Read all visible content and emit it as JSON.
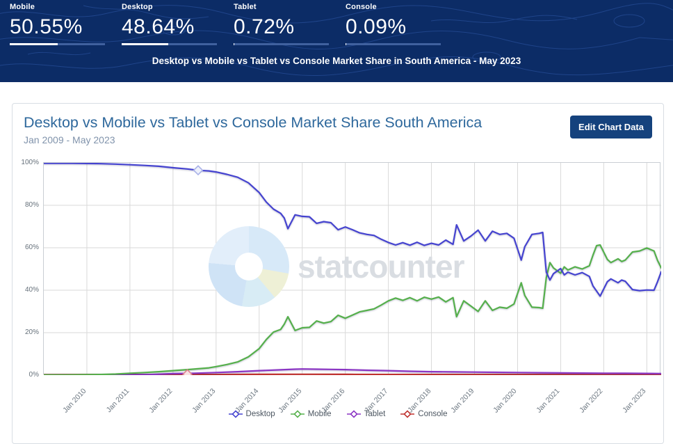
{
  "header": {
    "stats": [
      {
        "label": "Mobile",
        "value": "50.55%",
        "pct": 50.55
      },
      {
        "label": "Desktop",
        "value": "48.64%",
        "pct": 48.64
      },
      {
        "label": "Tablet",
        "value": "0.72%",
        "pct": 0.72
      },
      {
        "label": "Console",
        "value": "0.09%",
        "pct": 0.09
      }
    ],
    "subtitle": "Desktop vs Mobile vs Tablet vs Console Market Share in South America - May 2023"
  },
  "card": {
    "title": "Desktop vs Mobile vs Tablet vs Console Market Share South America",
    "period": "Jan 2009 - May 2023",
    "edit_button": "Edit Chart Data",
    "watermark": "statcounter"
  },
  "colors": {
    "header_background": "#0c2c66",
    "button_background": "#15427d",
    "title_text": "#2e689c"
  },
  "chart_data": {
    "type": "line",
    "title": "Desktop vs Mobile vs Tablet vs Console Market Share South America",
    "x_unit": "months since Jan 2009",
    "x_range": [
      0,
      172
    ],
    "ylim": [
      0,
      100
    ],
    "grid": true,
    "legend_position": "bottom",
    "y_ticks": [
      {
        "label": "100%",
        "value": 100
      },
      {
        "label": "80%",
        "value": 80
      },
      {
        "label": "60%",
        "value": 60
      },
      {
        "label": "40%",
        "value": 40
      },
      {
        "label": "20%",
        "value": 20
      },
      {
        "label": "0%",
        "value": 0
      }
    ],
    "x_ticks": [
      {
        "label": "Jan 2010",
        "month": 12
      },
      {
        "label": "Jan 2011",
        "month": 24
      },
      {
        "label": "Jan 2012",
        "month": 36
      },
      {
        "label": "Jan 2013",
        "month": 48
      },
      {
        "label": "Jan 2014",
        "month": 60
      },
      {
        "label": "Jan 2015",
        "month": 72
      },
      {
        "label": "Jan 2016",
        "month": 84
      },
      {
        "label": "Jan 2017",
        "month": 96
      },
      {
        "label": "Jan 2018",
        "month": 108
      },
      {
        "label": "Jan 2019",
        "month": 120
      },
      {
        "label": "Jan 2020",
        "month": 132
      },
      {
        "label": "Jan 2021",
        "month": 144
      },
      {
        "label": "Jan 2022",
        "month": 156
      },
      {
        "label": "Jan 2023",
        "month": 168
      }
    ],
    "series": [
      {
        "name": "Console",
        "color": "#bf312e",
        "points": [
          [
            0,
            0.2
          ],
          [
            12,
            0.25
          ],
          [
            24,
            0.3
          ],
          [
            36,
            0.3
          ],
          [
            48,
            0.3
          ],
          [
            60,
            0.35
          ],
          [
            72,
            0.4
          ],
          [
            84,
            0.35
          ],
          [
            96,
            0.3
          ],
          [
            108,
            0.3
          ],
          [
            120,
            0.3
          ],
          [
            132,
            0.3
          ],
          [
            144,
            0.25
          ],
          [
            156,
            0.2
          ],
          [
            168,
            0.15
          ],
          [
            172,
            0.09
          ]
        ]
      },
      {
        "name": "Tablet",
        "color": "#8b35c4",
        "points": [
          [
            0,
            0.0
          ],
          [
            12,
            0.05
          ],
          [
            24,
            0.15
          ],
          [
            30,
            0.3
          ],
          [
            36,
            0.7
          ],
          [
            42,
            0.9
          ],
          [
            48,
            1.2
          ],
          [
            54,
            1.6
          ],
          [
            60,
            2.1
          ],
          [
            66,
            2.5
          ],
          [
            70,
            2.8
          ],
          [
            72,
            2.9
          ],
          [
            76,
            2.8
          ],
          [
            80,
            2.7
          ],
          [
            84,
            2.6
          ],
          [
            90,
            2.3
          ],
          [
            96,
            2.1
          ],
          [
            102,
            1.8
          ],
          [
            108,
            1.6
          ],
          [
            114,
            1.5
          ],
          [
            120,
            1.4
          ],
          [
            126,
            1.3
          ],
          [
            132,
            1.2
          ],
          [
            138,
            1.1
          ],
          [
            144,
            1.0
          ],
          [
            150,
            0.95
          ],
          [
            156,
            0.9
          ],
          [
            162,
            0.85
          ],
          [
            168,
            0.8
          ],
          [
            172,
            0.72
          ]
        ]
      },
      {
        "name": "Mobile",
        "color": "#55b04b",
        "points": [
          [
            0,
            0.1
          ],
          [
            6,
            0.1
          ],
          [
            12,
            0.2
          ],
          [
            16,
            0.3
          ],
          [
            20,
            0.5
          ],
          [
            24,
            0.9
          ],
          [
            28,
            1.2
          ],
          [
            32,
            1.6
          ],
          [
            36,
            2.1
          ],
          [
            40,
            2.6
          ],
          [
            43,
            3.0
          ],
          [
            46,
            3.4
          ],
          [
            48,
            4.0
          ],
          [
            51,
            5.0
          ],
          [
            54,
            6.2
          ],
          [
            57,
            8.6
          ],
          [
            60,
            12.5
          ],
          [
            62,
            16.8
          ],
          [
            64,
            20.3
          ],
          [
            66,
            21.5
          ],
          [
            67,
            24.0
          ],
          [
            68,
            27.5
          ],
          [
            70,
            21.0
          ],
          [
            72,
            22.3
          ],
          [
            74,
            22.5
          ],
          [
            76,
            25.5
          ],
          [
            78,
            24.5
          ],
          [
            80,
            25.2
          ],
          [
            82,
            28.2
          ],
          [
            84,
            26.8
          ],
          [
            86,
            28.3
          ],
          [
            88,
            29.8
          ],
          [
            90,
            30.5
          ],
          [
            92,
            31.2
          ],
          [
            94,
            33.0
          ],
          [
            96,
            35.0
          ],
          [
            98,
            36.3
          ],
          [
            100,
            35.2
          ],
          [
            102,
            36.5
          ],
          [
            104,
            35.0
          ],
          [
            106,
            36.7
          ],
          [
            108,
            35.8
          ],
          [
            110,
            36.8
          ],
          [
            112,
            34.5
          ],
          [
            114,
            36.5
          ],
          [
            115,
            27.5
          ],
          [
            117,
            35.0
          ],
          [
            119,
            32.5
          ],
          [
            121,
            30.0
          ],
          [
            123,
            35.0
          ],
          [
            125,
            30.5
          ],
          [
            127,
            32.0
          ],
          [
            129,
            31.5
          ],
          [
            131,
            33.5
          ],
          [
            133,
            43.5
          ],
          [
            134,
            37.5
          ],
          [
            136,
            32.0
          ],
          [
            138,
            31.8
          ],
          [
            139,
            31.5
          ],
          [
            140,
            46.0
          ],
          [
            141,
            53.0
          ],
          [
            142,
            50.5
          ],
          [
            144,
            48.0
          ],
          [
            145,
            51.0
          ],
          [
            146,
            49.5
          ],
          [
            148,
            51.0
          ],
          [
            150,
            50.0
          ],
          [
            152,
            51.5
          ],
          [
            153,
            56.5
          ],
          [
            154,
            61.0
          ],
          [
            155,
            61.3
          ],
          [
            157,
            54.5
          ],
          [
            158,
            53.0
          ],
          [
            160,
            54.8
          ],
          [
            161,
            53.5
          ],
          [
            162,
            54.2
          ],
          [
            164,
            58.0
          ],
          [
            166,
            58.5
          ],
          [
            168,
            59.9
          ],
          [
            170,
            58.5
          ],
          [
            171,
            54.0
          ],
          [
            172,
            50.55
          ]
        ]
      },
      {
        "name": "Desktop",
        "color": "#4543d0",
        "points": [
          [
            0,
            99.8
          ],
          [
            4,
            99.8
          ],
          [
            8,
            99.8
          ],
          [
            12,
            99.7
          ],
          [
            16,
            99.6
          ],
          [
            20,
            99.4
          ],
          [
            24,
            99.1
          ],
          [
            28,
            98.8
          ],
          [
            32,
            98.4
          ],
          [
            36,
            97.7
          ],
          [
            40,
            97.1
          ],
          [
            43,
            96.5
          ],
          [
            46,
            96.2
          ],
          [
            48,
            95.7
          ],
          [
            51,
            94.6
          ],
          [
            54,
            93.2
          ],
          [
            57,
            90.6
          ],
          [
            60,
            86.0
          ],
          [
            62,
            81.5
          ],
          [
            64,
            78.2
          ],
          [
            66,
            76.2
          ],
          [
            67,
            74.0
          ],
          [
            68,
            69.0
          ],
          [
            70,
            75.5
          ],
          [
            72,
            74.8
          ],
          [
            74,
            74.6
          ],
          [
            76,
            71.5
          ],
          [
            78,
            72.3
          ],
          [
            80,
            71.8
          ],
          [
            82,
            68.5
          ],
          [
            84,
            69.8
          ],
          [
            86,
            68.5
          ],
          [
            88,
            67.0
          ],
          [
            90,
            66.3
          ],
          [
            92,
            65.8
          ],
          [
            94,
            64.0
          ],
          [
            96,
            62.5
          ],
          [
            98,
            61.3
          ],
          [
            100,
            62.4
          ],
          [
            102,
            61.2
          ],
          [
            104,
            62.6
          ],
          [
            106,
            61.1
          ],
          [
            108,
            62.1
          ],
          [
            110,
            61.3
          ],
          [
            112,
            63.6
          ],
          [
            114,
            61.6
          ],
          [
            115,
            70.8
          ],
          [
            117,
            63.2
          ],
          [
            119,
            65.5
          ],
          [
            121,
            68.3
          ],
          [
            123,
            63.2
          ],
          [
            125,
            67.8
          ],
          [
            127,
            66.3
          ],
          [
            129,
            66.8
          ],
          [
            131,
            64.5
          ],
          [
            133,
            54.2
          ],
          [
            134,
            60.5
          ],
          [
            136,
            66.3
          ],
          [
            138,
            66.8
          ],
          [
            139,
            67.2
          ],
          [
            140,
            48.5
          ],
          [
            141,
            44.8
          ],
          [
            142,
            47.8
          ],
          [
            144,
            50.2
          ],
          [
            145,
            47.2
          ],
          [
            146,
            48.5
          ],
          [
            148,
            47.2
          ],
          [
            150,
            48.3
          ],
          [
            152,
            46.5
          ],
          [
            153,
            42.0
          ],
          [
            155,
            37.2
          ],
          [
            157,
            44.0
          ],
          [
            158,
            45.3
          ],
          [
            160,
            43.5
          ],
          [
            161,
            44.8
          ],
          [
            162,
            44.2
          ],
          [
            164,
            40.3
          ],
          [
            166,
            39.8
          ],
          [
            168,
            40.1
          ],
          [
            170,
            40.0
          ],
          [
            171,
            44.0
          ],
          [
            172,
            48.64
          ]
        ]
      }
    ],
    "legend": [
      {
        "name": "Desktop",
        "color": "#4543d0"
      },
      {
        "name": "Mobile",
        "color": "#55b04b"
      },
      {
        "name": "Tablet",
        "color": "#8b35c4"
      },
      {
        "name": "Console",
        "color": "#bf312e"
      }
    ],
    "markers": [
      {
        "series": "Desktop",
        "month": 43,
        "value": 96.5,
        "stroke": "#a9b2e8",
        "fill": "#eef1fb"
      },
      {
        "series": "Console",
        "month": 40,
        "value": 0.4,
        "stroke": "#e0808f",
        "fill": "#f8e2e2"
      }
    ]
  }
}
